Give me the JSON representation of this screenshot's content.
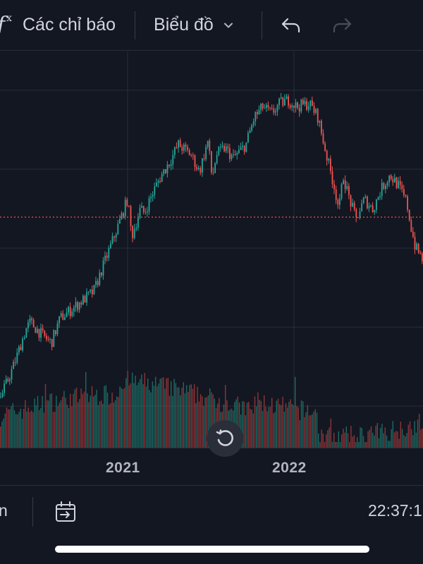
{
  "toolbar": {
    "fx_icon": "fx-icon",
    "indicators_label": "Các chỉ báo",
    "chart_type_label": "Biểu đồ",
    "chevron_icon": "chevron-down-icon",
    "undo_icon": "undo-icon",
    "redo_icon": "redo-icon"
  },
  "chart": {
    "reset_icon": "reset-icon"
  },
  "time_axis": {
    "labels": [
      "2021",
      "2022"
    ]
  },
  "bottom_bar": {
    "range_text": "n",
    "goto_icon": "calendar-goto-icon",
    "clock": "22:37:1"
  },
  "colors": {
    "background": "#131722",
    "up": "#26a69a",
    "down": "#ef5350",
    "grid": "#2a2e39",
    "last_price_line": "#ef5350"
  },
  "chart_data": {
    "type": "candlestick",
    "x_labels": [
      "2021",
      "2022"
    ],
    "price_series": {
      "time": [
        0,
        0.03,
        0.06,
        0.07,
        0.1,
        0.12,
        0.14,
        0.18,
        0.22,
        0.25,
        0.28,
        0.3,
        0.31,
        0.33,
        0.34,
        0.36,
        0.38,
        0.4,
        0.42,
        0.45,
        0.47,
        0.49,
        0.5,
        0.51,
        0.53,
        0.55,
        0.58,
        0.6,
        0.62,
        0.64,
        0.66,
        0.68,
        0.7,
        0.73,
        0.75,
        0.77,
        0.79,
        0.8,
        0.81,
        0.82,
        0.84,
        0.86,
        0.88,
        0.9,
        0.92,
        0.94,
        0.96,
        0.97,
        0.98,
        1.0
      ],
      "value": [
        0.05,
        0.14,
        0.25,
        0.27,
        0.23,
        0.21,
        0.28,
        0.32,
        0.36,
        0.46,
        0.56,
        0.63,
        0.52,
        0.6,
        0.59,
        0.65,
        0.7,
        0.74,
        0.79,
        0.76,
        0.71,
        0.8,
        0.69,
        0.76,
        0.78,
        0.75,
        0.79,
        0.87,
        0.9,
        0.88,
        0.91,
        0.92,
        0.9,
        0.91,
        0.87,
        0.76,
        0.66,
        0.6,
        0.7,
        0.65,
        0.57,
        0.63,
        0.6,
        0.66,
        0.7,
        0.67,
        0.62,
        0.55,
        0.49,
        0.45
      ]
    },
    "volume_series": "dense red/green volume bars along the bottom of the chart",
    "last_price_line": "dotted horizontal red line"
  }
}
